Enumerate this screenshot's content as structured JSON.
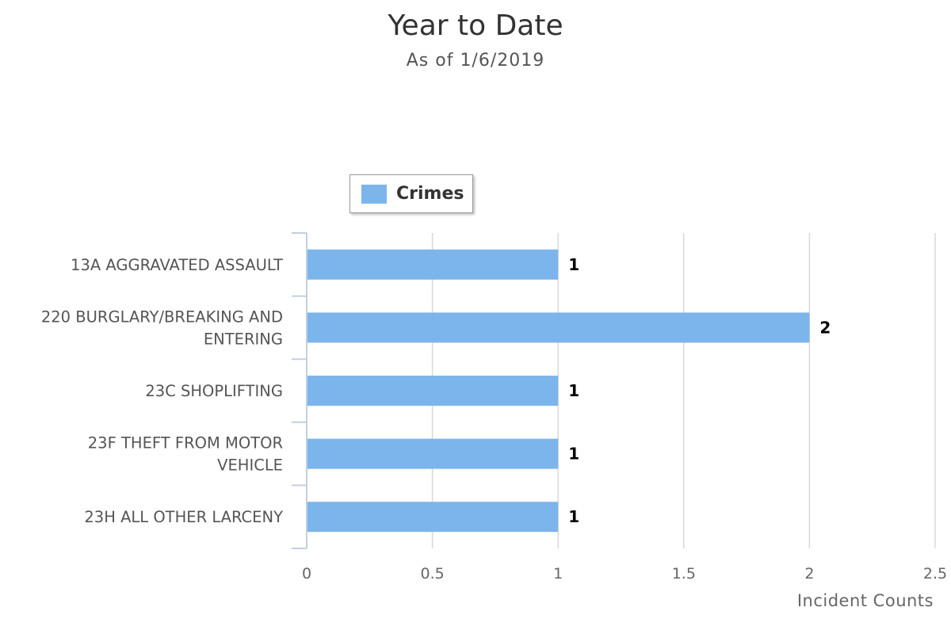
{
  "chart_data": {
    "type": "bar",
    "orientation": "horizontal",
    "title": "Year to Date",
    "subtitle": "As of 1/6/2019",
    "categories": [
      [
        "13A AGGRAVATED ASSAULT"
      ],
      [
        "220 BURGLARY/BREAKING AND",
        "ENTERING"
      ],
      [
        "23C SHOPLIFTING"
      ],
      [
        "23F THEFT FROM MOTOR",
        "VEHICLE"
      ],
      [
        "23H ALL OTHER LARCENY"
      ]
    ],
    "series": [
      {
        "name": "Crimes",
        "values": [
          1,
          2,
          1,
          1,
          1
        ],
        "color": "#7cb5ec"
      }
    ],
    "xlabel": "Incident Counts",
    "ylabel": "",
    "xlim": [
      0,
      2.5
    ],
    "ticks": [
      "0",
      "0.5",
      "1",
      "1.5",
      "2",
      "2.5"
    ],
    "data_labels": true,
    "grid": true,
    "legend_placement": "top-left"
  }
}
